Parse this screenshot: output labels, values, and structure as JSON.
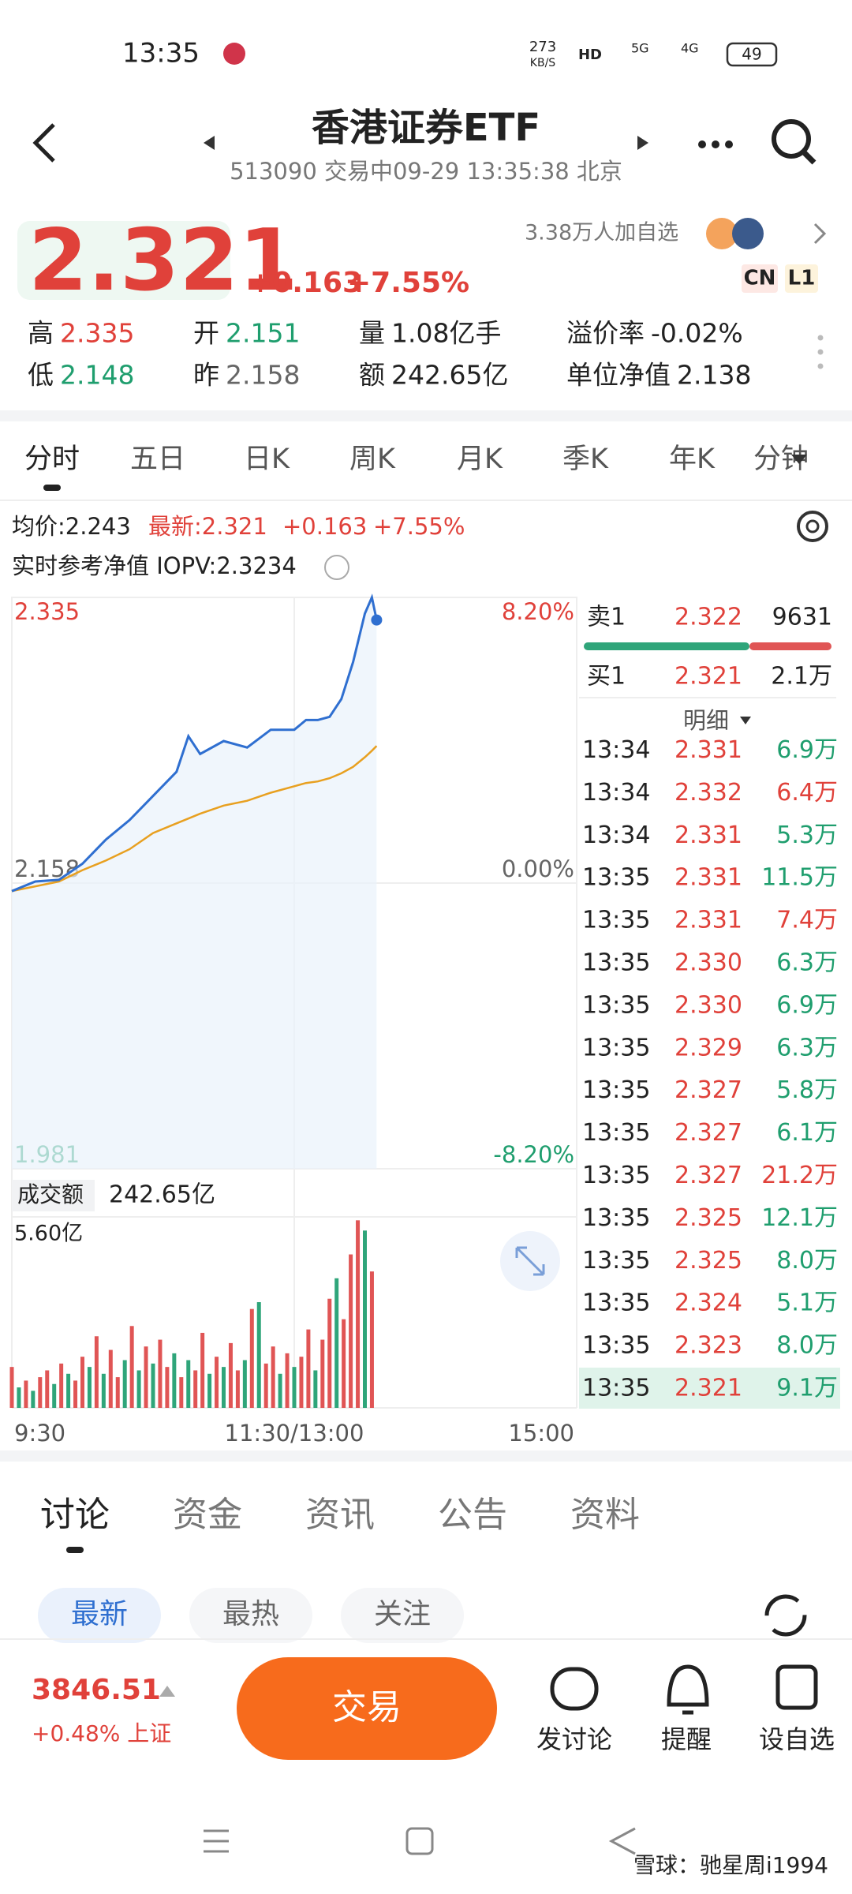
{
  "status_bar": {
    "time": "13:35",
    "net_speed": "273",
    "net_unit": "KB/S",
    "hd": "HD",
    "signal": "5G",
    "signal2": "4G",
    "battery": "49"
  },
  "header": {
    "title": "香港证券ETF",
    "subtitle": "513090 交易中09-29 13:35:38 北京"
  },
  "quote": {
    "price": "2.321",
    "change": "+0.163",
    "change_pct": "+7.55%",
    "followers": "3.38万人加自选",
    "badges": [
      "CN",
      "L1"
    ],
    "stats": [
      {
        "label": "高",
        "value": "2.335",
        "color": "#e0413a"
      },
      {
        "label": "开",
        "value": "2.151",
        "color": "#1f9e6e"
      },
      {
        "label": "量",
        "value": "1.08亿手",
        "color": "#222222"
      },
      {
        "label": "溢价率",
        "value": "-0.02%",
        "color": "#222222"
      },
      {
        "label": "低",
        "value": "2.148",
        "color": "#1f9e6e"
      },
      {
        "label": "昨",
        "value": "2.158",
        "color": "#666666"
      },
      {
        "label": "额",
        "value": "242.65亿",
        "color": "#222222"
      },
      {
        "label": "单位净值",
        "value": "2.138",
        "color": "#222222"
      }
    ]
  },
  "tabs": [
    "分时",
    "五日",
    "日K",
    "周K",
    "月K",
    "季K",
    "年K",
    "分钟"
  ],
  "info": {
    "avg": "均价:2.243",
    "latest": "最新:2.321",
    "change": "+0.163",
    "change_pct": "+7.55%",
    "iopv": "实时参考净值 IOPV:2.3234"
  },
  "intraday": {
    "x": [
      0,
      10,
      20,
      30,
      40,
      50,
      60,
      70,
      75,
      80,
      90,
      100,
      110,
      120,
      125,
      130,
      135,
      140,
      145,
      150,
      153,
      155
    ],
    "price": [
      2.153,
      2.159,
      2.16,
      2.17,
      2.185,
      2.197,
      2.212,
      2.227,
      2.249,
      2.238,
      2.246,
      2.242,
      2.253,
      2.253,
      2.259,
      2.259,
      2.261,
      2.272,
      2.295,
      2.325,
      2.335,
      2.321
    ],
    "avg": [
      2.153,
      2.156,
      2.159,
      2.166,
      2.172,
      2.179,
      2.189,
      2.195,
      2.198,
      2.201,
      2.206,
      2.209,
      2.214,
      2.218,
      2.22,
      2.221,
      2.223,
      2.226,
      2.23,
      2.236,
      2.24,
      2.243
    ],
    "xlim": [
      0,
      240
    ],
    "xticks": [
      {
        "value": 0,
        "label": "9:30"
      },
      {
        "value": 120,
        "label": "11:30/13:00"
      },
      {
        "value": 240,
        "label": "15:00"
      }
    ],
    "ylim": [
      1.981,
      2.335
    ],
    "yticks": [
      2.335,
      2.158,
      1.981
    ],
    "pct_labels": [
      "8.20%",
      "0.00%",
      "-8.20%"
    ],
    "pct_colors": [
      "#e0413a",
      "#666666",
      "#1f9e6e"
    ],
    "price_color": "#2f6fd0",
    "avg_color": "#e8a020"
  },
  "turnover": {
    "label": "成交额",
    "value": "242.65亿"
  },
  "volume": {
    "x": [
      0,
      3,
      6,
      9,
      12,
      15,
      18,
      21,
      24,
      27,
      30,
      33,
      36,
      39,
      42,
      45,
      48,
      51,
      54,
      57,
      60,
      63,
      66,
      69,
      72,
      75,
      78,
      81,
      84,
      87,
      90,
      93,
      96,
      99,
      102,
      105,
      108,
      111,
      114,
      117,
      120,
      123,
      126,
      129,
      132,
      135,
      138,
      141,
      144,
      147,
      150,
      153
    ],
    "values": [
      1.2,
      0.6,
      0.8,
      0.5,
      0.9,
      1.1,
      0.7,
      1.3,
      1.0,
      0.8,
      1.5,
      1.2,
      2.1,
      1.0,
      1.7,
      0.9,
      1.4,
      2.4,
      1.1,
      1.8,
      1.3,
      2.0,
      1.2,
      1.6,
      0.9,
      1.4,
      1.1,
      2.2,
      1.0,
      1.5,
      1.2,
      1.9,
      1.1,
      1.4,
      2.9,
      3.1,
      1.3,
      1.8,
      1.0,
      1.6,
      1.2,
      1.5,
      2.3,
      1.1,
      2.0,
      3.2,
      3.8,
      2.6,
      4.5,
      5.5,
      5.2,
      4.0
    ],
    "colors": [
      "#e05555",
      "#2fa57a",
      "#e05555",
      "#2fa57a",
      "#e05555",
      "#e05555",
      "#2fa57a",
      "#e05555",
      "#2fa57a",
      "#e05555",
      "#e05555",
      "#2fa57a",
      "#e05555",
      "#2fa57a",
      "#e05555",
      "#e05555",
      "#2fa57a",
      "#e05555",
      "#2fa57a",
      "#e05555",
      "#2fa57a",
      "#e05555",
      "#e05555",
      "#2fa57a",
      "#e05555",
      "#2fa57a",
      "#e05555",
      "#e05555",
      "#2fa57a",
      "#e05555",
      "#2fa57a",
      "#e05555",
      "#e05555",
      "#2fa57a",
      "#e05555",
      "#2fa57a",
      "#e05555",
      "#e05555",
      "#2fa57a",
      "#e05555",
      "#2fa57a",
      "#e05555",
      "#e05555",
      "#2fa57a",
      "#e05555",
      "#e05555",
      "#2fa57a",
      "#e05555",
      "#e05555",
      "#e05555",
      "#2fa57a",
      "#e05555"
    ],
    "ylim": [
      0,
      5.6
    ],
    "yticks": [
      {
        "value": 5.6,
        "label": "5.60亿"
      }
    ]
  },
  "order_book": {
    "ask": {
      "label": "卖1",
      "price": "2.322",
      "volume": "9631"
    },
    "bid": {
      "label": "买1",
      "price": "2.321",
      "volume": "2.1万"
    },
    "detail": "明细",
    "trades": [
      {
        "time": "13:34",
        "price": "2.331",
        "volume": "6.9万",
        "color": "#1f9e6e"
      },
      {
        "time": "13:34",
        "price": "2.332",
        "volume": "6.4万",
        "color": "#e0413a"
      },
      {
        "time": "13:34",
        "price": "2.331",
        "volume": "5.3万",
        "color": "#1f9e6e"
      },
      {
        "time": "13:35",
        "price": "2.331",
        "volume": "11.5万",
        "color": "#1f9e6e"
      },
      {
        "time": "13:35",
        "price": "2.331",
        "volume": "7.4万",
        "color": "#e0413a"
      },
      {
        "time": "13:35",
        "price": "2.330",
        "volume": "6.3万",
        "color": "#1f9e6e"
      },
      {
        "time": "13:35",
        "price": "2.330",
        "volume": "6.9万",
        "color": "#1f9e6e"
      },
      {
        "time": "13:35",
        "price": "2.329",
        "volume": "6.3万",
        "color": "#1f9e6e"
      },
      {
        "time": "13:35",
        "price": "2.327",
        "volume": "5.8万",
        "color": "#1f9e6e"
      },
      {
        "time": "13:35",
        "price": "2.327",
        "volume": "6.1万",
        "color": "#1f9e6e"
      },
      {
        "time": "13:35",
        "price": "2.327",
        "volume": "21.2万",
        "color": "#e0413a"
      },
      {
        "time": "13:35",
        "price": "2.325",
        "volume": "12.1万",
        "color": "#1f9e6e"
      },
      {
        "time": "13:35",
        "price": "2.325",
        "volume": "8.0万",
        "color": "#1f9e6e"
      },
      {
        "time": "13:35",
        "price": "2.324",
        "volume": "5.1万",
        "color": "#1f9e6e"
      },
      {
        "time": "13:35",
        "price": "2.323",
        "volume": "8.0万",
        "color": "#1f9e6e"
      },
      {
        "time": "13:35",
        "price": "2.321",
        "volume": "9.1万",
        "color": "#1f9e6e"
      }
    ]
  },
  "bottom_tabs": [
    "讨论",
    "资金",
    "资讯",
    "公告",
    "资料"
  ],
  "filters": [
    "最新",
    "最热",
    "关注"
  ],
  "footer": {
    "index_value": "3846.51",
    "index_change": "+0.48% 上证",
    "trade_button": "交易",
    "actions": [
      "发讨论",
      "提醒",
      "设自选"
    ]
  },
  "watermark": "雪球：驰星周i1994"
}
